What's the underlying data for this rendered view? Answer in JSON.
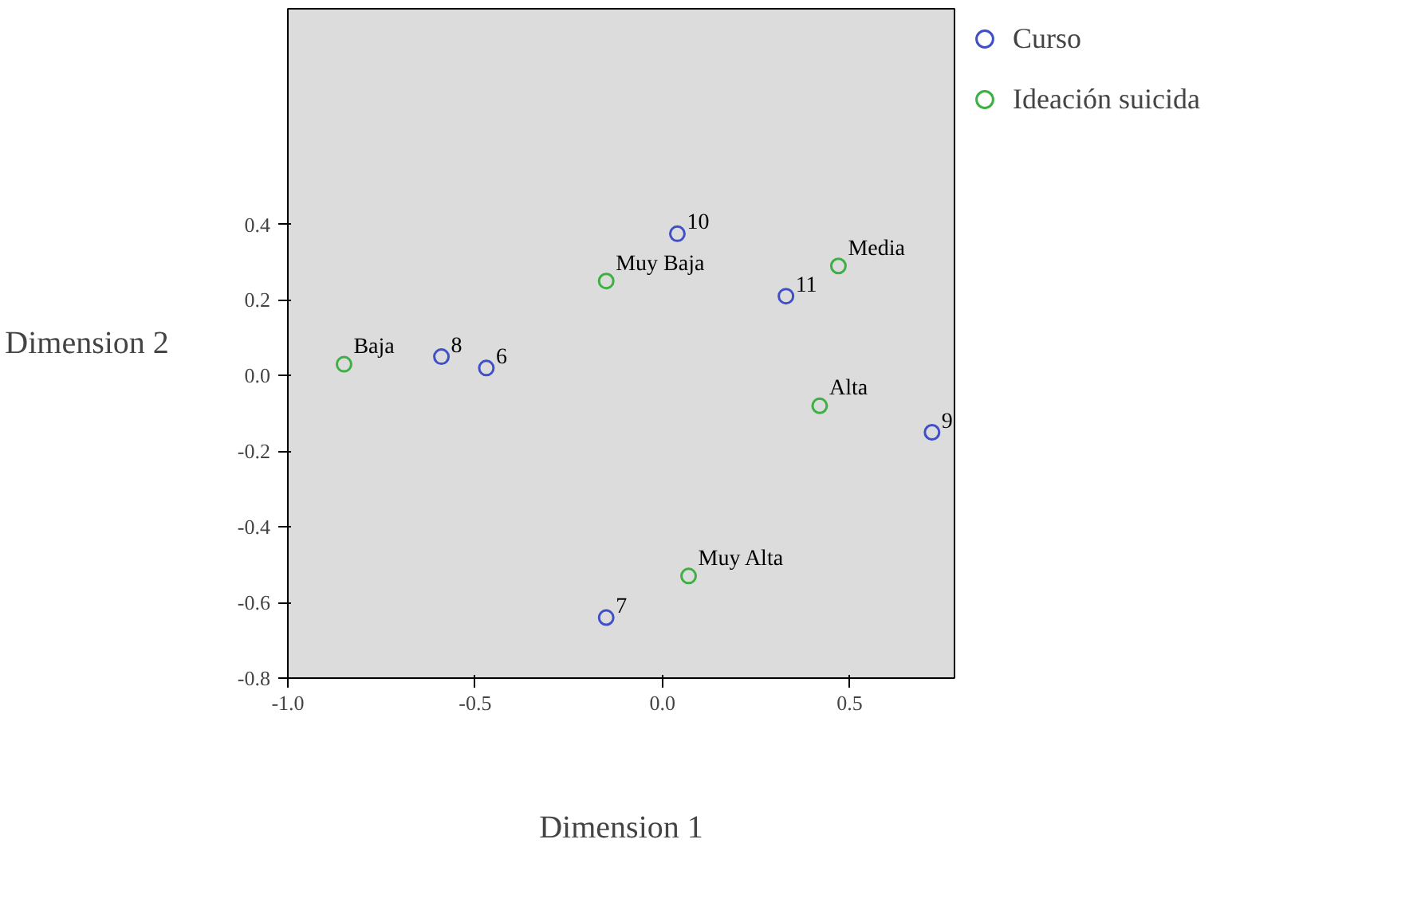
{
  "chart_data": {
    "type": "scatter",
    "xlabel": "Dimension 1",
    "ylabel": "Dimension 2",
    "xlim": [
      -1.0,
      0.78
    ],
    "ylim": [
      -0.8,
      0.97
    ],
    "xticks": [
      {
        "value": -1.0,
        "label": "-1.0"
      },
      {
        "value": -0.5,
        "label": "-0.5"
      },
      {
        "value": 0.0,
        "label": "0.0"
      },
      {
        "value": 0.5,
        "label": "0.5"
      }
    ],
    "yticks": [
      {
        "value": -0.8,
        "label": "-0.8"
      },
      {
        "value": -0.6,
        "label": "-0.6"
      },
      {
        "value": -0.4,
        "label": "-0.4"
      },
      {
        "value": -0.2,
        "label": "-0.2"
      },
      {
        "value": 0.0,
        "label": "0.0"
      },
      {
        "value": 0.2,
        "label": "0.2"
      },
      {
        "value": 0.4,
        "label": "0.4"
      }
    ],
    "grid": false,
    "legend": "top right",
    "marker": "circle",
    "series": [
      {
        "name": "Curso",
        "color": "#3f4fc8",
        "x": [
          0.04,
          0.33,
          -0.59,
          -0.47,
          0.72,
          -0.15
        ],
        "values": [
          0.375,
          0.21,
          0.05,
          0.02,
          -0.15,
          -0.64
        ]
      },
      {
        "name": "Ideación suicida",
        "color": "#3cb043",
        "x": [
          0.47,
          -0.15,
          -0.85,
          0.42,
          0.07
        ],
        "values": [
          0.29,
          0.25,
          0.03,
          -0.08,
          -0.53
        ]
      }
    ],
    "annotations": [
      {
        "text": "10",
        "x": 0.04,
        "y": 0.375
      },
      {
        "text": "11",
        "x": 0.33,
        "y": 0.21
      },
      {
        "text": "8",
        "x": -0.59,
        "y": 0.05
      },
      {
        "text": "6",
        "x": -0.47,
        "y": 0.02
      },
      {
        "text": "9",
        "x": 0.72,
        "y": -0.15
      },
      {
        "text": "7",
        "x": -0.15,
        "y": -0.64
      },
      {
        "text": "Media",
        "x": 0.47,
        "y": 0.29
      },
      {
        "text": "Muy Baja",
        "x": -0.15,
        "y": 0.25
      },
      {
        "text": "Baja",
        "x": -0.85,
        "y": 0.03
      },
      {
        "text": "Alta",
        "x": 0.42,
        "y": -0.08
      },
      {
        "text": "Muy Alta",
        "x": 0.07,
        "y": -0.53
      }
    ]
  }
}
